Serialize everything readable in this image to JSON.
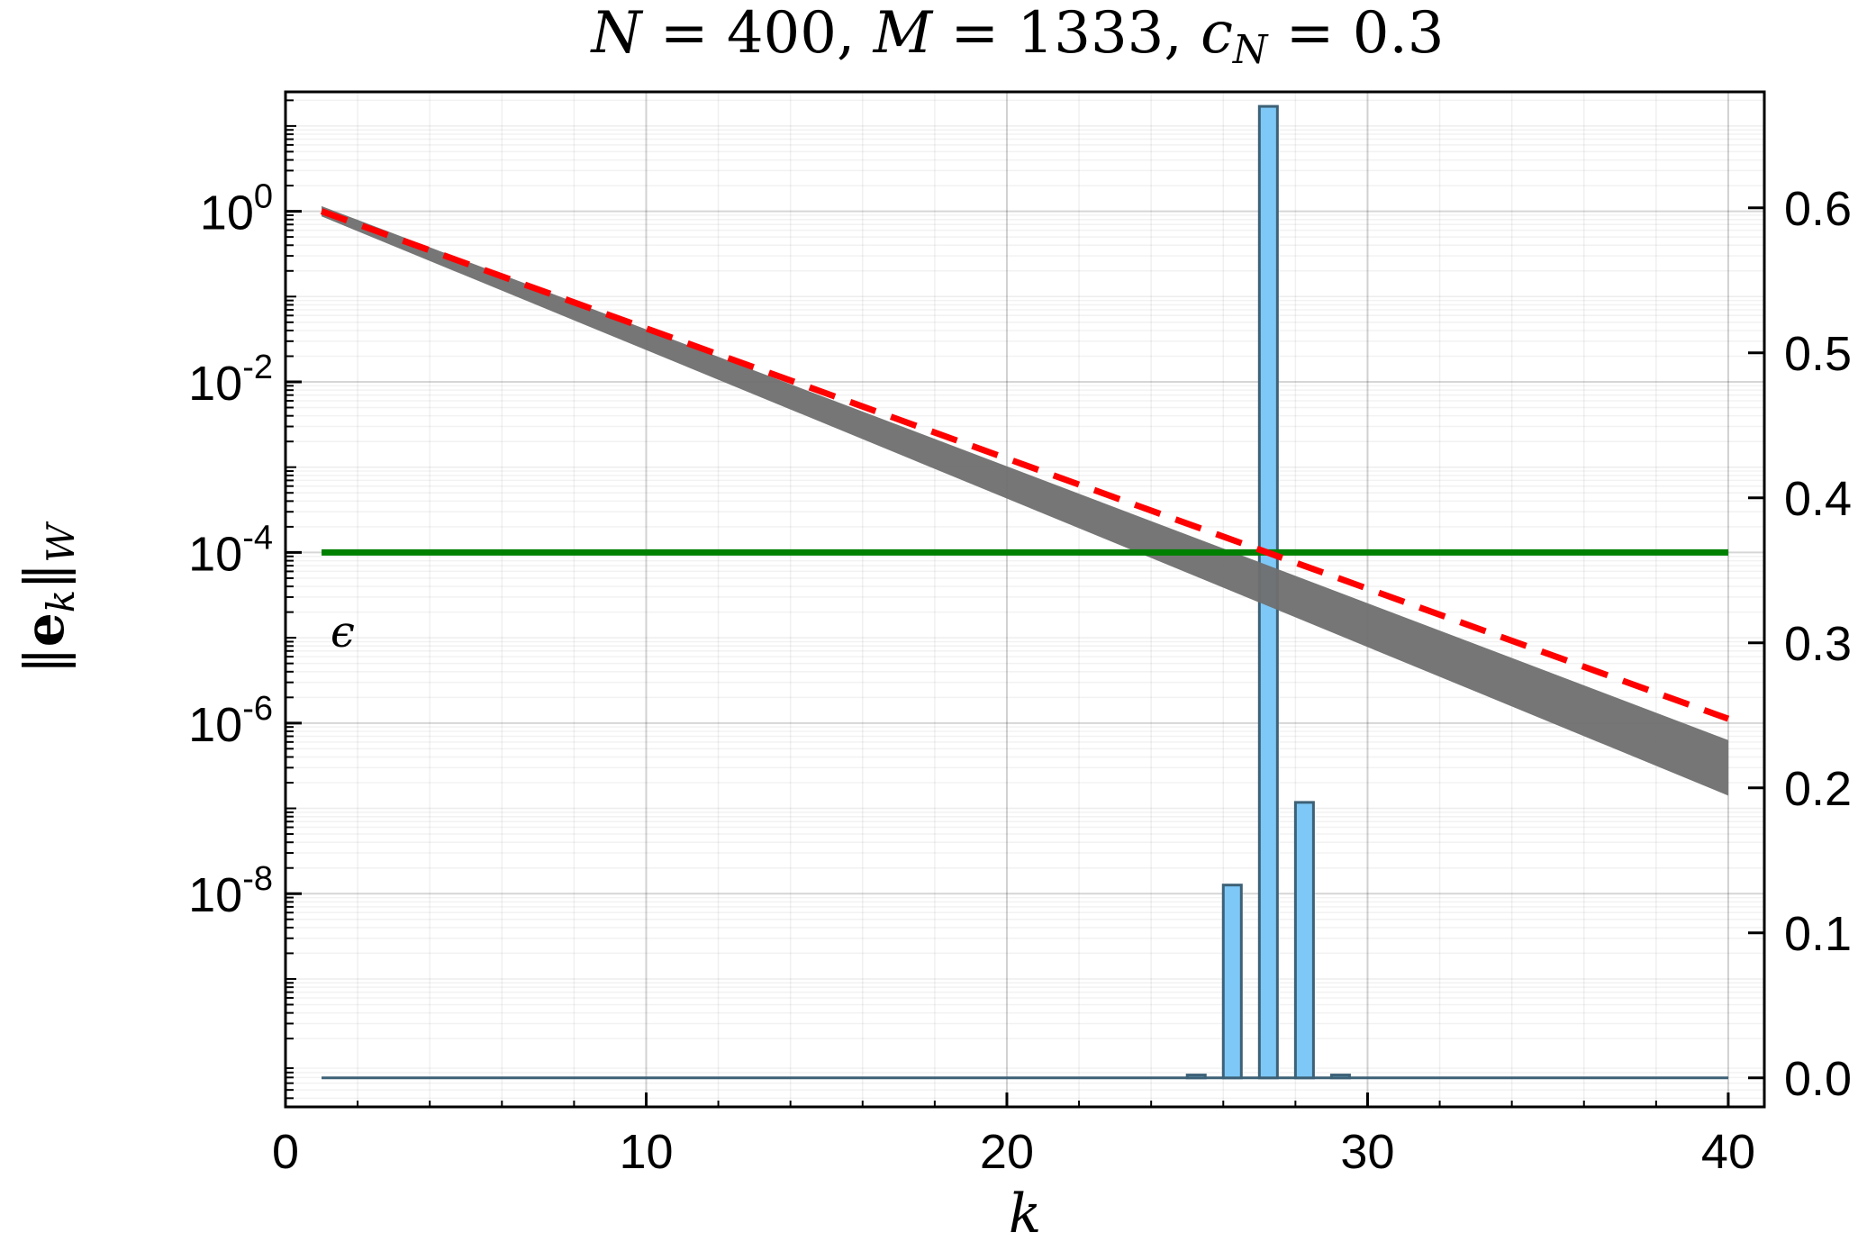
{
  "chart_data": {
    "type": "line",
    "title": "N = 400, M = 1333, c_N = 0.3",
    "title_parts": {
      "n_var": "N",
      "n_val": " = 400, ",
      "m_var": "M",
      "m_val": " = 1333, ",
      "c_var": "c",
      "c_sub": "N",
      "c_val": " = 0.3"
    },
    "xlabel": "k",
    "ylabel": "‖e_k‖_W",
    "ylabel_parts": {
      "open": "‖",
      "bold": "e",
      "sub_k": "k",
      "close": "‖",
      "sub_w": "W"
    },
    "xlim": [
      0,
      41
    ],
    "xticks": [
      0,
      10,
      20,
      30,
      40
    ],
    "ylim_log10": [
      -10.5,
      1.4
    ],
    "y_left_ticks": [
      {
        "base": "10",
        "exp": "0",
        "value": 1
      },
      {
        "base": "10",
        "exp": "-2",
        "value": 0.01
      },
      {
        "base": "10",
        "exp": "-4",
        "value": 0.0001
      },
      {
        "base": "10",
        "exp": "-6",
        "value": 1e-06
      },
      {
        "base": "10",
        "exp": "-8",
        "value": 1e-08
      }
    ],
    "y2lim": [
      -0.02,
      0.68
    ],
    "y_right_ticks": [
      "0.0",
      "0.1",
      "0.2",
      "0.3",
      "0.4",
      "0.5",
      "0.6"
    ],
    "grid": true,
    "colors": {
      "band": "#6f6f6f",
      "dashed": "#ff0000",
      "epsilon": "#008000",
      "bars": "#7ec8f7",
      "bar_edge": "#3d6176"
    },
    "series": [
      {
        "kind": "band",
        "x": [
          1,
          40
        ],
        "log10_upper": [
          0.06,
          -6.2
        ],
        "log10_lower": [
          -0.06,
          -6.85
        ]
      },
      {
        "kind": "dashed",
        "x": [
          1,
          40
        ],
        "log10_y": [
          0,
          -5.95
        ]
      },
      {
        "kind": "threshold",
        "label": "ϵ",
        "y": 0.0001,
        "x": [
          1,
          40
        ]
      }
    ],
    "histogram": {
      "x": [
        25,
        26,
        27,
        28,
        29
      ],
      "values": [
        0.002,
        0.133,
        0.67,
        0.19,
        0.002
      ]
    }
  }
}
